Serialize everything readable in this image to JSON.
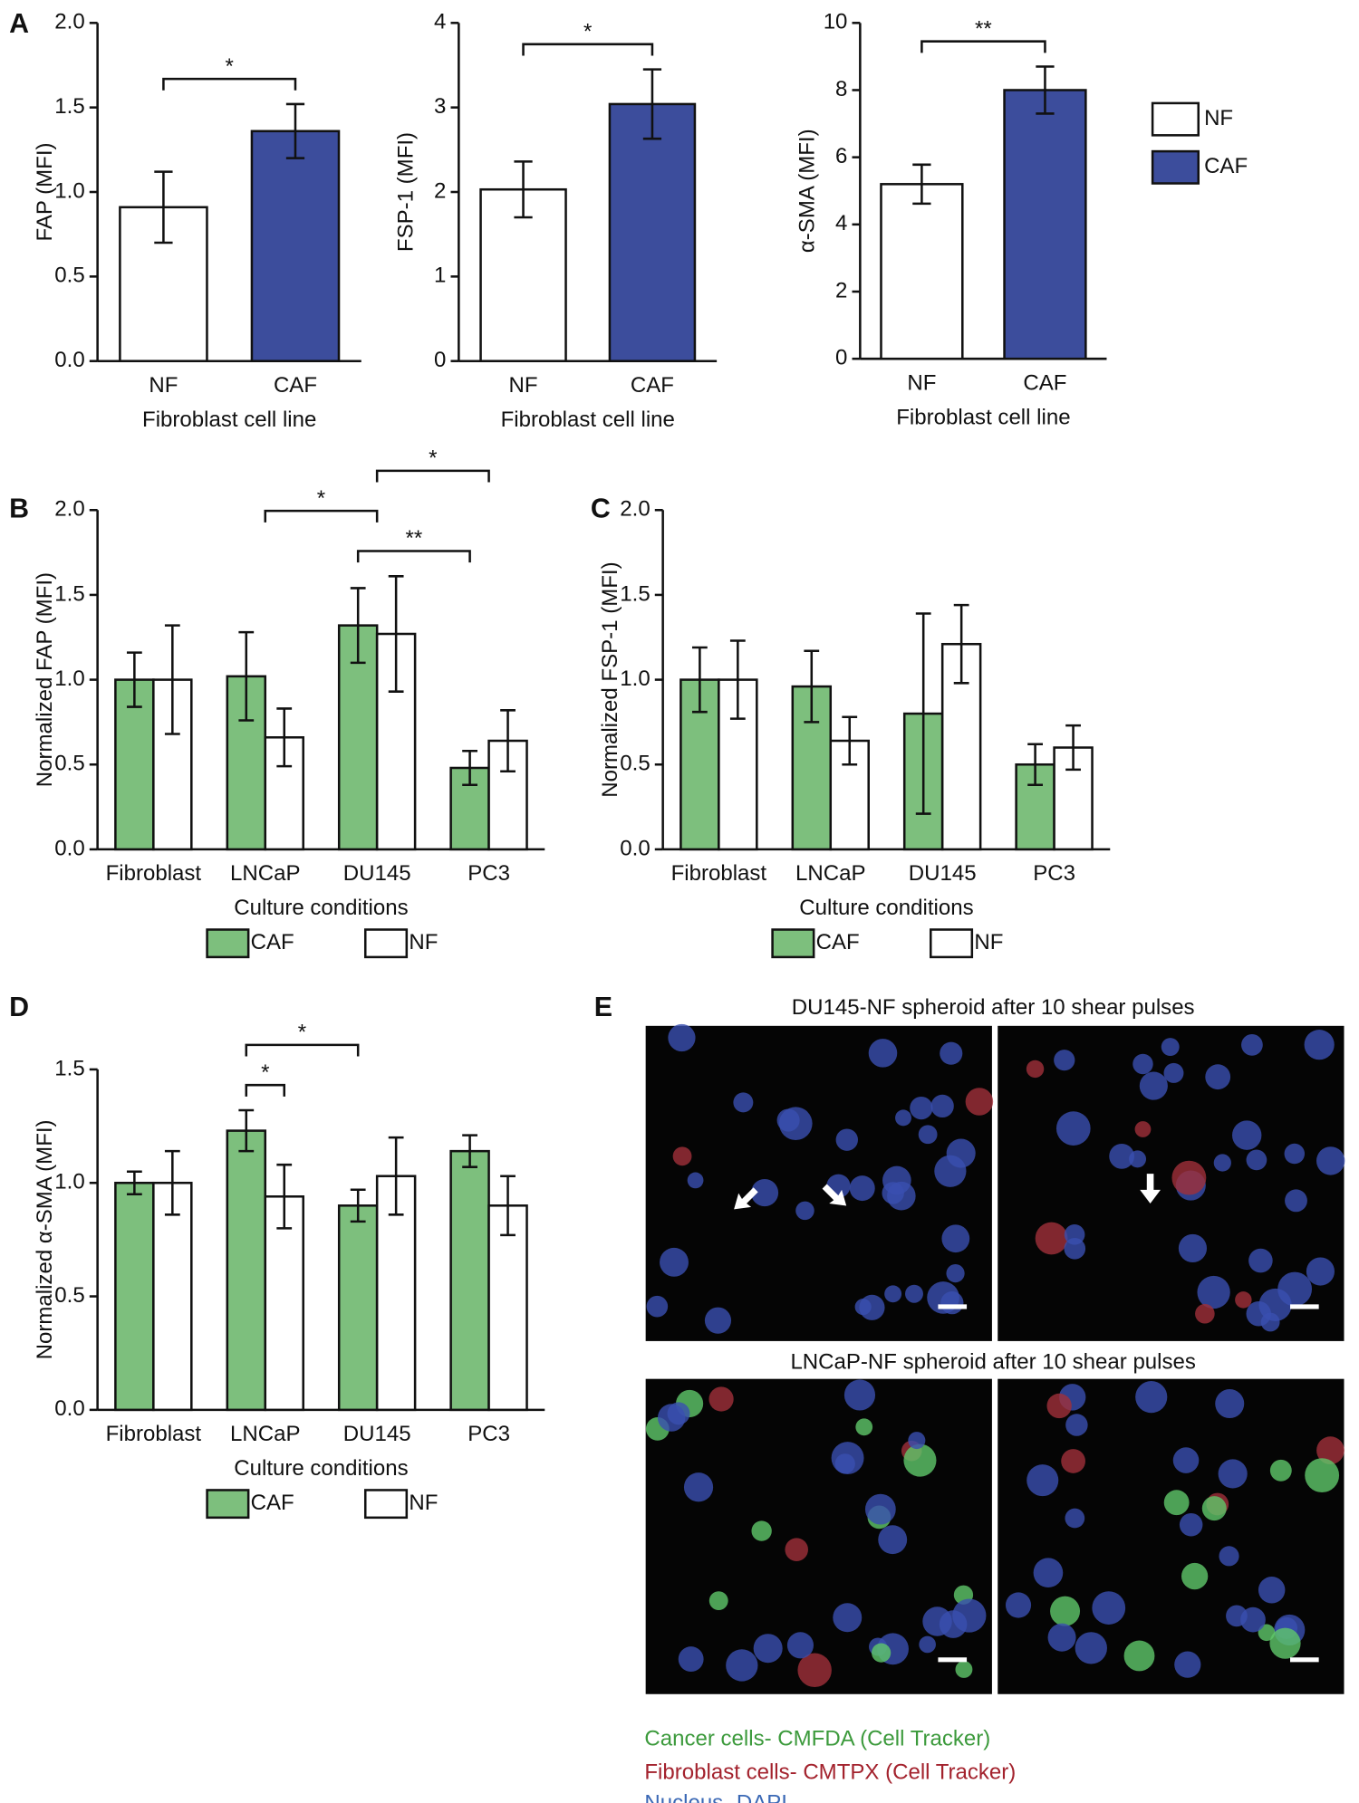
{
  "panel_labels": [
    "A",
    "B",
    "C",
    "D",
    "E"
  ],
  "chart_data": [
    {
      "type": "bar",
      "ylabel": "FAP  (MFI)",
      "xlabel": "Fibroblast cell line",
      "categories": [
        "NF",
        "CAF"
      ],
      "values": [
        0.91,
        1.36
      ],
      "errors": [
        0.21,
        0.16
      ],
      "colors": [
        "#ffffff",
        "#3c4d9c"
      ],
      "ylim": [
        0,
        2
      ],
      "yticks": [
        {
          "value": 0,
          "label": "0.0"
        },
        {
          "value": 0.5,
          "label": "0.5"
        },
        {
          "value": 1,
          "label": "1.0"
        },
        {
          "value": 1.5,
          "label": "1.5"
        },
        {
          "value": 2,
          "label": "2.0"
        }
      ],
      "annotations": [
        {
          "text": "*",
          "from": [
            0
          ],
          "to": [
            1
          ]
        }
      ]
    },
    {
      "type": "bar",
      "ylabel": "FSP-1  (MFI)",
      "xlabel": "Fibroblast cell line",
      "categories": [
        "NF",
        "CAF"
      ],
      "values": [
        2.03,
        3.04
      ],
      "errors": [
        0.33,
        0.41
      ],
      "colors": [
        "#ffffff",
        "#3c4d9c"
      ],
      "ylim": [
        0,
        4
      ],
      "yticks": [
        0,
        1,
        2,
        3,
        4
      ],
      "annotations": [
        {
          "text": "*",
          "from": [
            0
          ],
          "to": [
            1
          ]
        }
      ]
    },
    {
      "type": "bar",
      "ylabel": "α-SMA  (MFI)",
      "xlabel": "Fibroblast cell line",
      "categories": [
        "NF",
        "CAF"
      ],
      "values": [
        5.2,
        8.0
      ],
      "errors": [
        0.58,
        0.7
      ],
      "colors": [
        "#ffffff",
        "#3c4d9c"
      ],
      "ylim": [
        0,
        10
      ],
      "yticks": [
        0,
        2,
        4,
        6,
        8,
        10
      ],
      "legend": true,
      "annotations": [
        {
          "text": "**",
          "from": [
            0
          ],
          "to": [
            1
          ]
        }
      ]
    },
    {
      "type": "grouped_bar",
      "ylabel": "Normalized FAP (MFI)",
      "xlabel": "Culture conditions",
      "categories": [
        "Fibroblast",
        "LNCaP",
        "DU145",
        "PC3"
      ],
      "series": [
        {
          "name": "CAF",
          "color": "#7dbf7d",
          "values": [
            1.0,
            1.02,
            1.32,
            0.48
          ],
          "errors": [
            0.16,
            0.26,
            0.22,
            0.1
          ]
        },
        {
          "name": "NF",
          "color": "#ffffff",
          "values": [
            1.0,
            0.66,
            1.27,
            0.64
          ],
          "errors": [
            0.32,
            0.17,
            0.34,
            0.18
          ]
        }
      ],
      "ylim": [
        0,
        2
      ],
      "yticks": [
        {
          "value": 0,
          "label": "0.0"
        },
        {
          "value": 0.5,
          "label": "0.5"
        },
        {
          "value": 1,
          "label": "1.0"
        },
        {
          "value": 1.5,
          "label": "1.5"
        },
        {
          "value": 2,
          "label": "2.0"
        }
      ],
      "annotations": [
        {
          "text": "**",
          "from": [
            2,
            0
          ],
          "to": [
            3,
            0
          ]
        },
        {
          "text": "*",
          "from": [
            1
          ],
          "to": [
            2
          ]
        },
        {
          "text": "*",
          "from": [
            2
          ],
          "to": [
            3
          ]
        }
      ]
    },
    {
      "type": "grouped_bar",
      "ylabel": "Normalized FSP-1 (MFI)",
      "xlabel": "Culture conditions",
      "categories": [
        "Fibroblast",
        "LNCaP",
        "DU145",
        "PC3"
      ],
      "series": [
        {
          "name": "CAF",
          "color": "#7dbf7d",
          "values": [
            1.0,
            0.96,
            0.8,
            0.5
          ],
          "errors": [
            0.19,
            0.21,
            0.59,
            0.12
          ]
        },
        {
          "name": "NF",
          "color": "#ffffff",
          "values": [
            1.0,
            0.64,
            1.21,
            0.6
          ],
          "errors": [
            0.23,
            0.14,
            0.23,
            0.13
          ]
        }
      ],
      "ylim": [
        0,
        2
      ],
      "yticks": [
        {
          "value": 0,
          "label": "0.0"
        },
        {
          "value": 0.5,
          "label": "0.5"
        },
        {
          "value": 1,
          "label": "1.0"
        },
        {
          "value": 1.5,
          "label": "1.5"
        },
        {
          "value": 2,
          "label": "2.0"
        }
      ],
      "annotations": []
    },
    {
      "type": "grouped_bar",
      "ylabel": "Normalized α-SMA  (MFI)",
      "xlabel": "Culture conditions",
      "categories": [
        "Fibroblast",
        "LNCaP",
        "DU145",
        "PC3"
      ],
      "series": [
        {
          "name": "CAF",
          "color": "#7dbf7d",
          "values": [
            1.0,
            1.23,
            0.9,
            1.14
          ],
          "errors": [
            0.05,
            0.09,
            0.07,
            0.07
          ]
        },
        {
          "name": "NF",
          "color": "#ffffff",
          "values": [
            1.0,
            0.94,
            1.03,
            0.9
          ],
          "errors": [
            0.14,
            0.14,
            0.17,
            0.13
          ]
        }
      ],
      "ylim": [
        0,
        1.5
      ],
      "yticks": [
        {
          "value": 0,
          "label": "0.0"
        },
        {
          "value": 0.5,
          "label": "0.5"
        },
        {
          "value": 1,
          "label": "1.0"
        },
        {
          "value": 1.5,
          "label": "1.5"
        }
      ],
      "annotations": [
        {
          "text": "*",
          "from": [
            1,
            0
          ],
          "to": [
            1,
            1
          ]
        },
        {
          "text": "*",
          "from": [
            1,
            0
          ],
          "to": [
            2,
            0
          ]
        }
      ]
    }
  ],
  "panel_e": {
    "title_top": "DU145-NF spheroid after 10 shear pulses",
    "title_bottom": "LNCaP-NF spheroid after 10 shear pulses",
    "legend": [
      "Cancer cells- CMFDA  (Cell Tracker)",
      "Fibroblast cells- CMTPX (Cell Tracker)",
      "Nucleus- DAPI"
    ]
  }
}
